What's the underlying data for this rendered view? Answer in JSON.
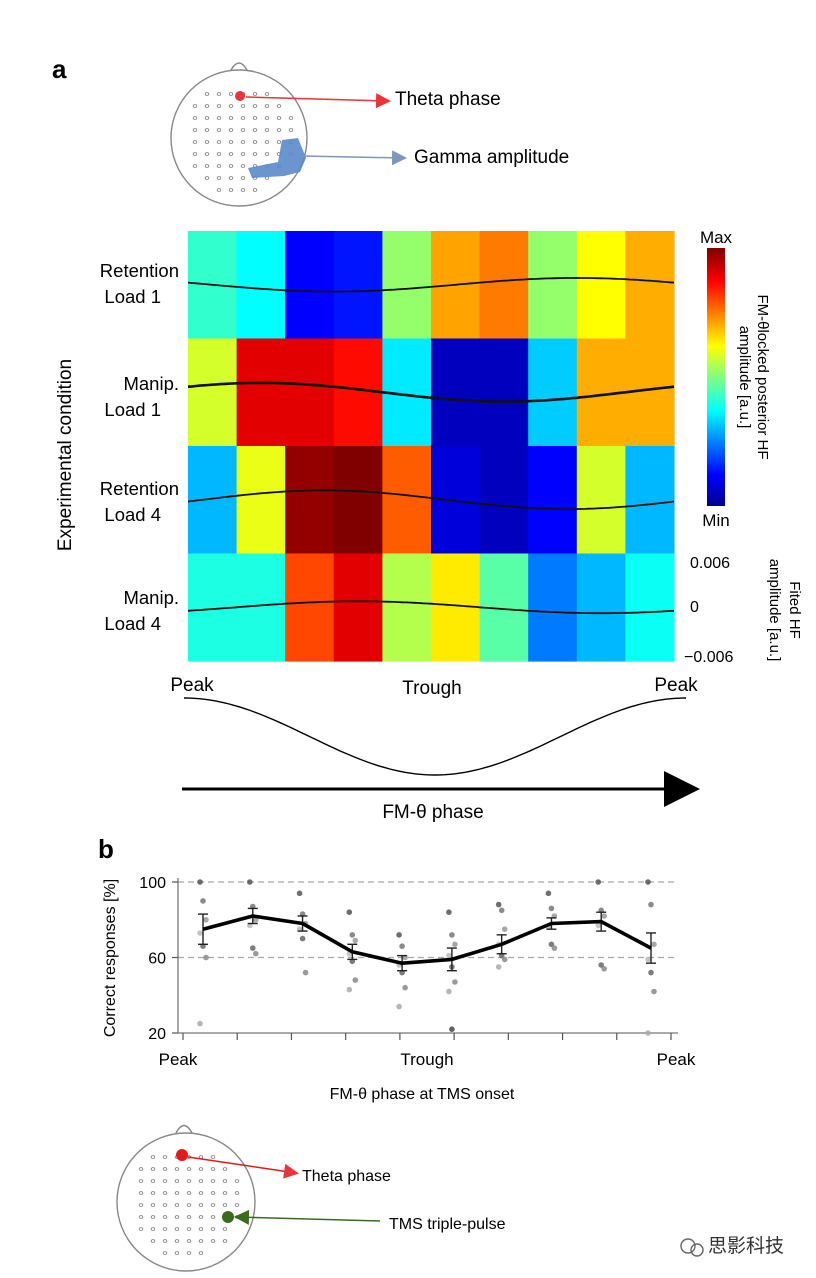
{
  "panel_a": {
    "label": "a",
    "head_labels": {
      "theta": "Theta phase",
      "gamma": "Gamma amplitude"
    },
    "y_title": "Experimental condition",
    "rows": [
      {
        "line1": "Retention",
        "line2": "Load 1"
      },
      {
        "line1": "Manip.",
        "line2": "Load 1"
      },
      {
        "line1": "Retention",
        "line2": "Load 4"
      },
      {
        "line1": "Manip.",
        "line2": "Load 4"
      }
    ],
    "colorbar": {
      "max_label": "Max",
      "min_label": "Min",
      "title_line1": "FM-θlocked posterior HF",
      "title_line2": "amplitude [a.u.]"
    },
    "fitted_axis": {
      "ticks": [
        "0.006",
        "0",
        "−0.006"
      ],
      "title_line1": "Fited HF",
      "title_line2": "amplitude [a.u.]"
    },
    "phase_labels": {
      "peak_left": "Peak",
      "trough": "Trough",
      "peak_right": "Peak"
    },
    "x_title": "FM-θ phase"
  },
  "panel_b": {
    "label": "b",
    "x_labels": {
      "peak_left": "Peak",
      "trough": "Trough",
      "peak_right": "Peak"
    },
    "x_title": "FM-θ phase at TMS onset",
    "y_title": "Correct responses [%]",
    "head_labels": {
      "theta": "Theta phase",
      "tms": "TMS triple-pulse"
    }
  },
  "watermark": "思影科技",
  "colors": {
    "theta_marker": "#e8343a",
    "gamma_region": "#5b8ac9",
    "tms_marker": "#3d6b1e",
    "mean_line": "#000000"
  },
  "chart_data": [
    {
      "type": "heatmap",
      "title": "",
      "rows": [
        "Retention Load 1",
        "Manip. Load 1",
        "Retention Load 4",
        "Manip. Load 4"
      ],
      "n_phase_bins": 10,
      "colorscale": "jet",
      "value_range": [
        0,
        1
      ],
      "values": [
        [
          0.42,
          0.37,
          0.12,
          0.14,
          0.52,
          0.71,
          0.75,
          0.52,
          0.62,
          0.7
        ],
        [
          0.58,
          0.9,
          0.9,
          0.86,
          0.35,
          0.05,
          0.05,
          0.32,
          0.7,
          0.7
        ],
        [
          0.3,
          0.6,
          0.98,
          1.0,
          0.78,
          0.08,
          0.05,
          0.12,
          0.58,
          0.3
        ],
        [
          0.4,
          0.4,
          0.8,
          0.9,
          0.55,
          0.64,
          0.46,
          0.24,
          0.3,
          0.38
        ]
      ],
      "fitted_curve_axis": {
        "ylim": [
          -0.006,
          0.006
        ],
        "ticks": [
          0.006,
          0,
          -0.006
        ]
      },
      "fitted_curves": [
        {
          "row": "Retention Load 1",
          "amplitude": 0.0008,
          "phase_of_peak": 0.8
        },
        {
          "row": "Manip. Load 1",
          "amplitude": 0.0011,
          "phase_of_peak": 0.15
        },
        {
          "row": "Retention Load 4",
          "amplitude": 0.0011,
          "phase_of_peak": 0.28
        },
        {
          "row": "Manip. Load 4",
          "amplitude": 0.0007,
          "phase_of_peak": 0.35
        }
      ],
      "x_axis": {
        "label": "FM-θ phase",
        "ticks": [
          "Peak",
          "Trough",
          "Peak"
        ]
      }
    },
    {
      "type": "line",
      "title": "",
      "xlabel": "FM-θ phase at TMS onset",
      "ylabel": "Correct responses [%]",
      "x_tick_labels": [
        "Peak",
        "Trough",
        "Peak"
      ],
      "ylim": [
        20,
        100
      ],
      "yticks": [
        20,
        60,
        100
      ],
      "grid": "dashed at 60 and 100",
      "x": [
        1,
        2,
        3,
        4,
        5,
        6,
        7,
        8,
        9,
        10
      ],
      "series": [
        {
          "values": [
            75,
            82,
            78,
            63,
            57,
            59,
            67,
            78,
            79,
            65
          ],
          "error": [
            8,
            4,
            4,
            4,
            4,
            6,
            5,
            3,
            5,
            8
          ]
        }
      ],
      "scatter_points": [
        [
          100,
          90,
          80,
          73,
          66,
          60,
          25
        ],
        [
          100,
          87,
          80,
          77,
          65,
          62
        ],
        [
          94,
          83,
          78,
          75,
          70,
          52
        ],
        [
          84,
          72,
          69,
          62,
          58,
          48,
          43
        ],
        [
          72,
          66,
          60,
          56,
          52,
          44,
          34
        ],
        [
          84,
          72,
          67,
          61,
          55,
          47,
          42,
          22
        ],
        [
          88,
          85,
          75,
          67,
          61,
          59,
          55
        ],
        [
          94,
          86,
          82,
          76,
          67,
          65
        ],
        [
          100,
          85,
          82,
          77,
          56,
          54
        ],
        [
          100,
          88,
          67,
          59,
          52,
          42,
          20
        ]
      ]
    }
  ]
}
